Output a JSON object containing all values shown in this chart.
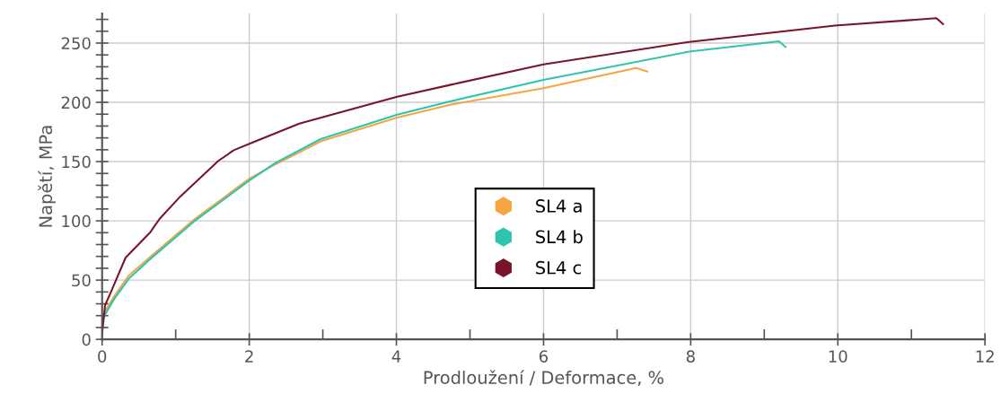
{
  "chart_data": {
    "type": "line",
    "xlabel": "Prodloužení / Deformace, %",
    "ylabel": "Napětí, MPa",
    "xlim": [
      0,
      12
    ],
    "ylim": [
      0,
      275
    ],
    "xticks": [
      0,
      2,
      4,
      6,
      8,
      10,
      12
    ],
    "yticks": [
      0,
      50,
      100,
      150,
      200,
      250
    ],
    "grid": true,
    "legend": "center",
    "series": [
      {
        "name": "SL4 a",
        "color": "#f7a541",
        "x": [
          0,
          0.04,
          0.16,
          0.36,
          0.65,
          1.26,
          2,
          2.36,
          2.97,
          4,
          4.73,
          6,
          7.26,
          7.41
        ],
        "values": [
          13.6,
          23.6,
          36,
          53.7,
          69.4,
          101.6,
          135.5,
          147.8,
          167,
          187,
          198,
          212,
          229,
          226
        ]
      },
      {
        "name": "SL4 b",
        "color": "#2ec4b0",
        "x": [
          0,
          0.04,
          0.16,
          0.36,
          0.65,
          1.26,
          2,
          2.36,
          2.97,
          4,
          4.73,
          6,
          7.98,
          9.2,
          9.29
        ],
        "values": [
          13.6,
          21,
          33.7,
          51,
          67.6,
          100,
          134,
          149,
          169,
          189.5,
          200.8,
          219,
          242.8,
          251.5,
          246.7
        ]
      },
      {
        "name": "SL4 c",
        "color": "#7a1428",
        "x": [
          0,
          0.04,
          0.12,
          0.32,
          0.65,
          0.78,
          1.06,
          1.58,
          1.79,
          2,
          2.68,
          4,
          4.73,
          6,
          7.98,
          9.96,
          11.34,
          11.43
        ],
        "values": [
          4.8,
          28.7,
          40,
          69,
          90,
          101.6,
          120.4,
          150.6,
          159.6,
          165,
          182,
          204.6,
          214.7,
          232,
          251,
          264.7,
          271,
          266
        ]
      }
    ]
  }
}
